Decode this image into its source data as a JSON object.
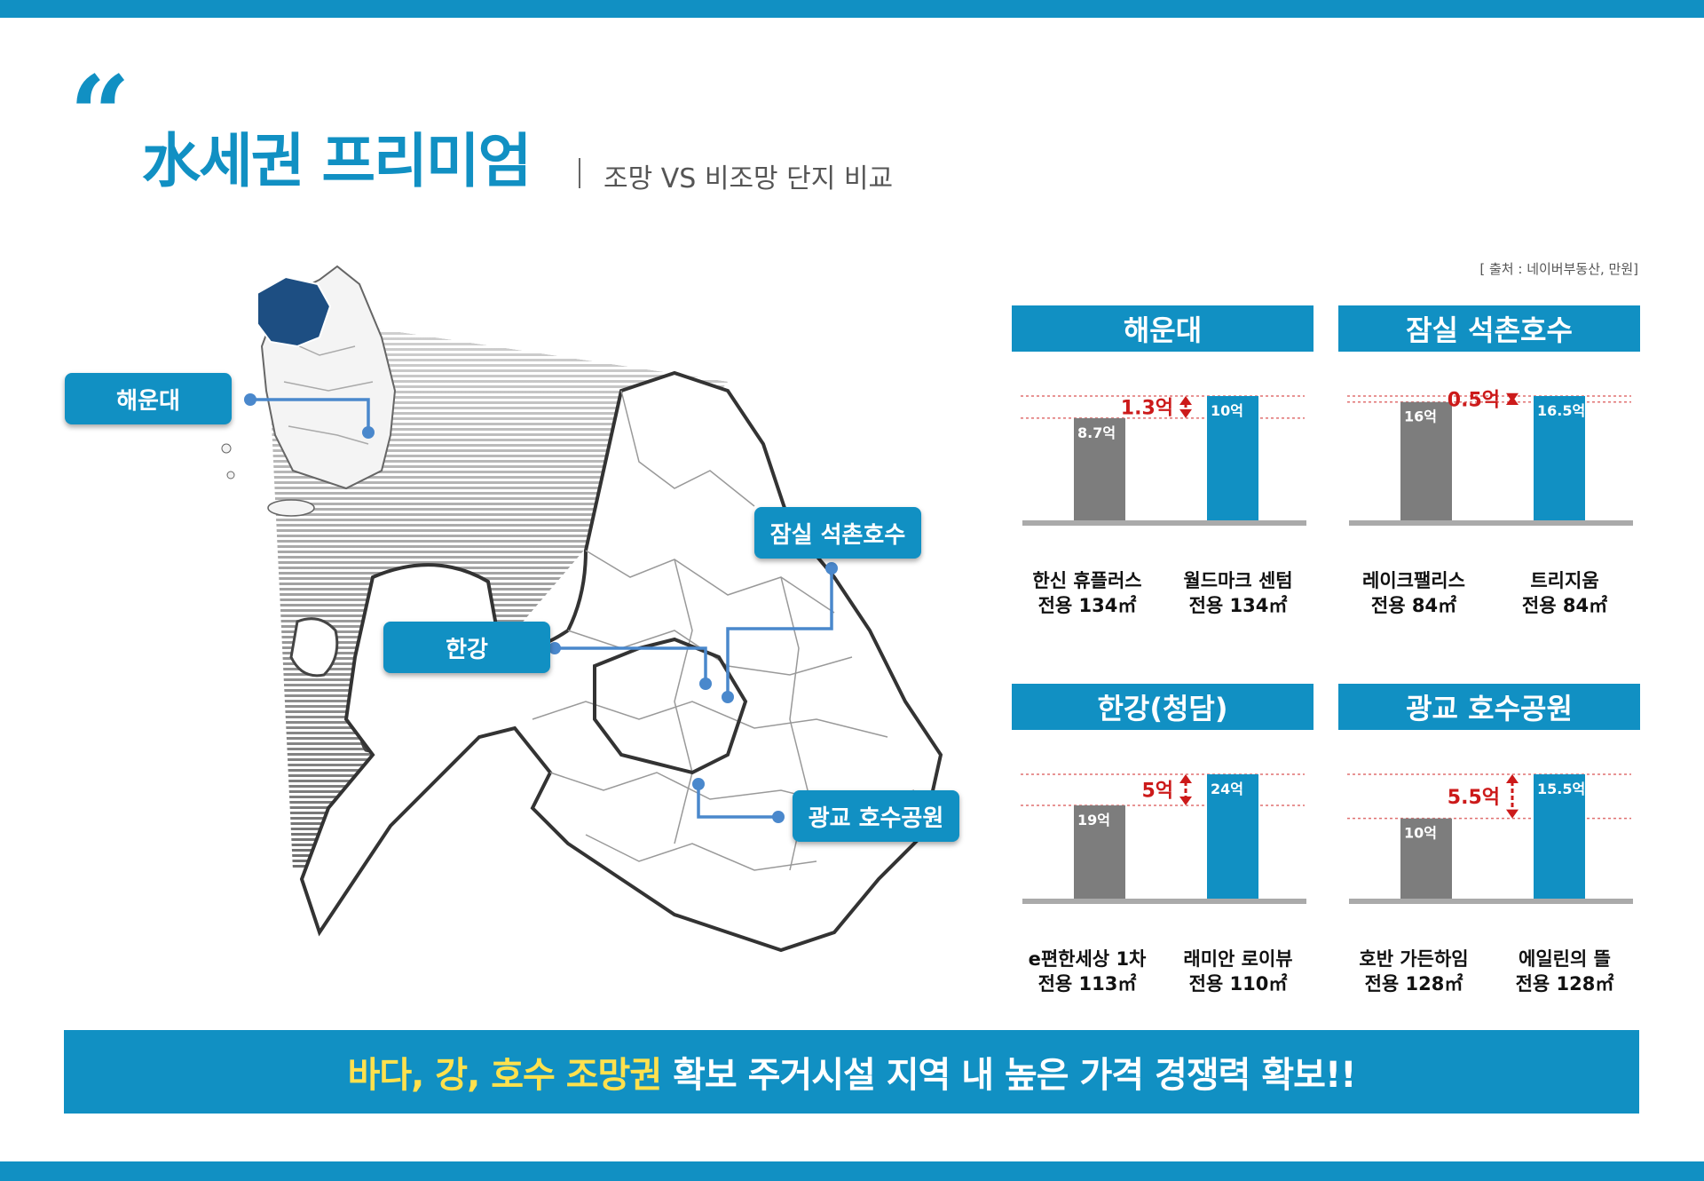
{
  "header": {
    "title": "水세권 프리미엄",
    "subtitle": "조망 VS 비조망 단지 비교",
    "source": "[ 출처 : 네이버부동산, 만원]"
  },
  "map": {
    "labels": [
      "해운대",
      "잠실 석촌호수",
      "한강",
      "광교 호수공원"
    ]
  },
  "chart_data": [
    {
      "type": "bar",
      "title": "해운대",
      "categories": [
        "한신 휴플러스 전용 134㎡",
        "월드마크 센텀 전용 134㎡"
      ],
      "label_lines": [
        [
          "한신 휴플러스",
          "전용 134㎡"
        ],
        [
          "월드마크 센텀",
          "전용 134㎡"
        ]
      ],
      "values": [
        8.7,
        10
      ],
      "value_labels": [
        "8.7억",
        "10억"
      ],
      "difference": 1.3,
      "difference_label": "1.3억",
      "colors": [
        "#7d7d7d",
        "#1190c3"
      ]
    },
    {
      "type": "bar",
      "title": "잠실 석촌호수",
      "categories": [
        "레이크팰리스 전용 84㎡",
        "트리지움 전용 84㎡"
      ],
      "label_lines": [
        [
          "레이크팰리스",
          "전용 84㎡"
        ],
        [
          "트리지움",
          "전용 84㎡"
        ]
      ],
      "values": [
        16,
        16.5
      ],
      "value_labels": [
        "16억",
        "16.5억"
      ],
      "difference": 0.5,
      "difference_label": "0.5억",
      "colors": [
        "#7d7d7d",
        "#1190c3"
      ]
    },
    {
      "type": "bar",
      "title": "한강(청담)",
      "categories": [
        "e편한세상 1차 전용 113㎡",
        "래미안 로이뷰 전용 110㎡"
      ],
      "label_lines": [
        [
          "e편한세상 1차",
          "전용 113㎡"
        ],
        [
          "래미안 로이뷰",
          "전용 110㎡"
        ]
      ],
      "values": [
        19,
        24
      ],
      "value_labels": [
        "19억",
        "24억"
      ],
      "difference": 5,
      "difference_label": "5억",
      "colors": [
        "#7d7d7d",
        "#1190c3"
      ]
    },
    {
      "type": "bar",
      "title": "광교 호수공원",
      "categories": [
        "호반 가든하임 전용 128㎡",
        "에일린의 뜰 전용 128㎡"
      ],
      "label_lines": [
        [
          "호반 가든하임",
          "전용 128㎡"
        ],
        [
          "에일린의 뜰",
          "전용 128㎡"
        ]
      ],
      "values": [
        10,
        15.5
      ],
      "value_labels": [
        "10억",
        "15.5억"
      ],
      "difference": 5.5,
      "difference_label": "5.5억",
      "colors": [
        "#7d7d7d",
        "#1190c3"
      ]
    }
  ],
  "banner": {
    "highlight": "바다, 강, 호수 조망권",
    "rest": " 확보 주거시설 지역 내 높은 가격 경쟁력 확보!!"
  },
  "colors": {
    "accent": "#1190c3",
    "gray_bar": "#7d7d7d",
    "diff": "#cc1a1a",
    "highlight": "#ffe14d"
  }
}
